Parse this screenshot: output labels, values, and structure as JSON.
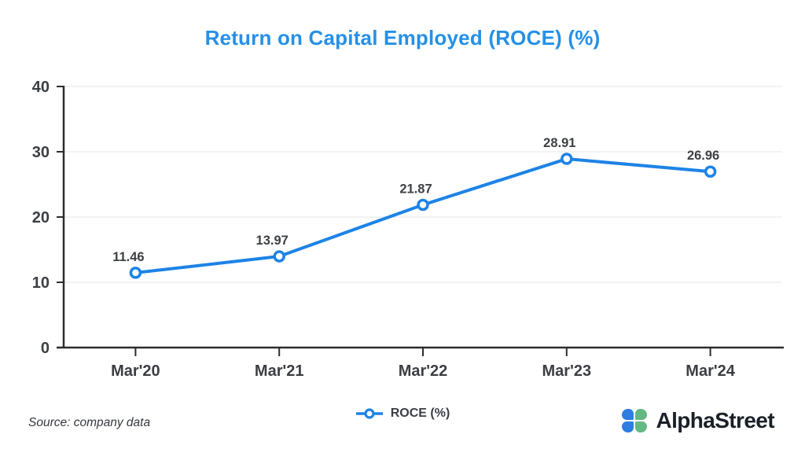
{
  "title": "Return on Capital Employed (ROCE) (%)",
  "colors": {
    "title": "#2590e8",
    "line": "#1d83e6",
    "marker_fill": "#ffffff",
    "axis": "#2d2d2d",
    "gridline": "#ededed",
    "label_text": "#3b3e42",
    "logo_blue": "#2e7de0",
    "logo_green": "#63b981"
  },
  "chart_data": {
    "type": "line",
    "categories": [
      "Mar'20",
      "Mar'21",
      "Mar'22",
      "Mar'23",
      "Mar'24"
    ],
    "series": [
      {
        "name": "ROCE (%)",
        "values": [
          11.46,
          13.97,
          21.87,
          28.91,
          26.96
        ]
      }
    ],
    "data_labels": [
      "11.46",
      "13.97",
      "21.87",
      "28.91",
      "26.96"
    ],
    "title": "Return on Capital Employed (ROCE) (%)",
    "xlabel": "",
    "ylabel": "",
    "ylim": [
      0,
      40
    ],
    "yticks": [
      0,
      10,
      20,
      30,
      40
    ],
    "grid": true,
    "legend_position": "bottom",
    "marker_style": "open-circle"
  },
  "legend": {
    "label": "ROCE (%)"
  },
  "footer": {
    "source": "Source: company data",
    "brand": "AlphaStreet"
  }
}
